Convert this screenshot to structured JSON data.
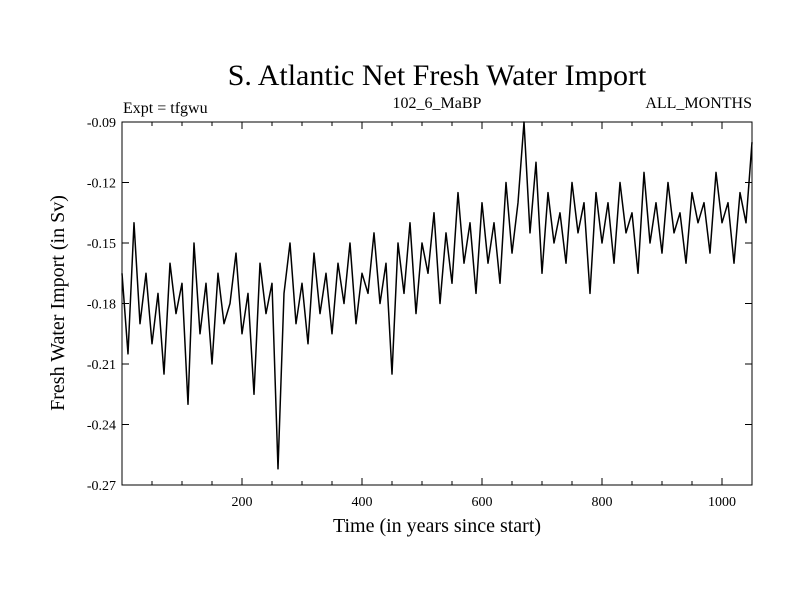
{
  "chart_data": {
    "type": "line",
    "title": "S. Atlantic Net Fresh Water Import",
    "subtitle_left": "Expt = tfgwu",
    "subtitle_center": "102_6_MaBP",
    "subtitle_right": "ALL_MONTHS",
    "xlabel": "Time (in years since start)",
    "ylabel": "Fresh Water Import (in Sv)",
    "xlim": [
      0,
      1050
    ],
    "ylim": [
      -0.27,
      -0.09
    ],
    "xticks": [
      200,
      400,
      600,
      800,
      1000
    ],
    "xtick_labels": [
      "200",
      "400",
      "600",
      "800",
      "1000"
    ],
    "yticks": [
      -0.09,
      -0.12,
      -0.15,
      -0.18,
      -0.21,
      -0.24,
      -0.27
    ],
    "ytick_labels": [
      "-0.09",
      "-0.12",
      "-0.15",
      "-0.18",
      "-0.21",
      "-0.24",
      "-0.27"
    ],
    "grid": false,
    "series": [
      {
        "name": "Net Fresh Water Import",
        "color": "#000000",
        "x": [
          0,
          10,
          20,
          30,
          40,
          50,
          60,
          70,
          80,
          90,
          100,
          110,
          120,
          130,
          140,
          150,
          160,
          170,
          180,
          190,
          200,
          210,
          220,
          230,
          240,
          250,
          260,
          270,
          280,
          290,
          300,
          310,
          320,
          330,
          340,
          350,
          360,
          370,
          380,
          390,
          400,
          410,
          420,
          430,
          440,
          450,
          460,
          470,
          480,
          490,
          500,
          510,
          520,
          530,
          540,
          550,
          560,
          570,
          580,
          590,
          600,
          610,
          620,
          630,
          640,
          650,
          660,
          670,
          680,
          690,
          700,
          710,
          720,
          730,
          740,
          750,
          760,
          770,
          780,
          790,
          800,
          810,
          820,
          830,
          840,
          850,
          860,
          870,
          880,
          890,
          900,
          910,
          920,
          930,
          940,
          950,
          960,
          970,
          980,
          990,
          1000,
          1010,
          1020,
          1030,
          1040,
          1050
        ],
        "values": [
          -0.165,
          -0.205,
          -0.14,
          -0.19,
          -0.165,
          -0.2,
          -0.175,
          -0.215,
          -0.16,
          -0.185,
          -0.17,
          -0.23,
          -0.15,
          -0.195,
          -0.17,
          -0.21,
          -0.165,
          -0.19,
          -0.18,
          -0.155,
          -0.195,
          -0.175,
          -0.225,
          -0.16,
          -0.185,
          -0.17,
          -0.262,
          -0.175,
          -0.15,
          -0.19,
          -0.17,
          -0.2,
          -0.155,
          -0.185,
          -0.165,
          -0.195,
          -0.16,
          -0.18,
          -0.15,
          -0.19,
          -0.165,
          -0.175,
          -0.145,
          -0.18,
          -0.16,
          -0.215,
          -0.15,
          -0.175,
          -0.14,
          -0.185,
          -0.15,
          -0.165,
          -0.135,
          -0.18,
          -0.145,
          -0.17,
          -0.125,
          -0.16,
          -0.14,
          -0.175,
          -0.13,
          -0.16,
          -0.14,
          -0.17,
          -0.12,
          -0.155,
          -0.13,
          -0.09,
          -0.145,
          -0.11,
          -0.165,
          -0.125,
          -0.15,
          -0.135,
          -0.16,
          -0.12,
          -0.145,
          -0.13,
          -0.175,
          -0.125,
          -0.15,
          -0.13,
          -0.16,
          -0.12,
          -0.145,
          -0.135,
          -0.165,
          -0.115,
          -0.15,
          -0.13,
          -0.155,
          -0.12,
          -0.145,
          -0.135,
          -0.16,
          -0.125,
          -0.14,
          -0.13,
          -0.155,
          -0.115,
          -0.14,
          -0.13,
          -0.16,
          -0.125,
          -0.14,
          -0.1
        ]
      }
    ]
  }
}
